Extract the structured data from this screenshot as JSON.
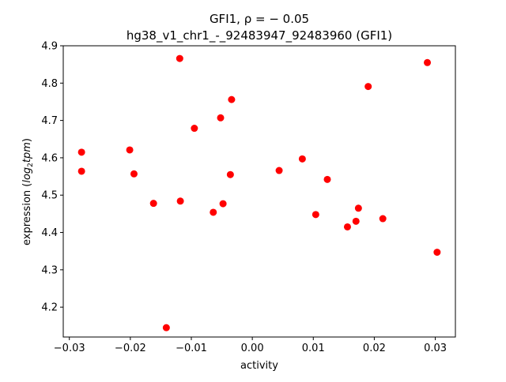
{
  "chart_data": {
    "type": "scatter",
    "title_line1": "GFI1, ρ = − 0.05",
    "title_line2": "hg38_v1_chr1_-_92483947_92483960 (GFI1)",
    "xlabel": "activity",
    "ylabel_prefix": "expression (",
    "ylabel_math": "log",
    "ylabel_sub": "2",
    "ylabel_math2": "tpm",
    "ylabel_suffix": ")",
    "xlim": [
      -0.031,
      0.0333
    ],
    "ylim": [
      4.12,
      4.9
    ],
    "x_ticks": [
      -0.03,
      -0.02,
      -0.01,
      0.0,
      0.01,
      0.02,
      0.03
    ],
    "x_tick_labels": [
      "−0.03",
      "−0.02",
      "−0.01",
      "0.00",
      "0.01",
      "0.02",
      "0.03"
    ],
    "y_ticks": [
      4.2,
      4.3,
      4.4,
      4.5,
      4.6,
      4.7,
      4.8,
      4.9
    ],
    "y_tick_labels": [
      "4.2",
      "4.3",
      "4.4",
      "4.5",
      "4.6",
      "4.7",
      "4.8",
      "4.9"
    ],
    "grid": false,
    "marker_color": "#ff0000",
    "points": [
      {
        "x": -0.028,
        "y": 4.615
      },
      {
        "x": -0.028,
        "y": 4.564
      },
      {
        "x": -0.0201,
        "y": 4.621
      },
      {
        "x": -0.0194,
        "y": 4.557
      },
      {
        "x": -0.0162,
        "y": 4.478
      },
      {
        "x": -0.0141,
        "y": 4.145
      },
      {
        "x": -0.0119,
        "y": 4.866
      },
      {
        "x": -0.0118,
        "y": 4.484
      },
      {
        "x": -0.0095,
        "y": 4.679
      },
      {
        "x": -0.0064,
        "y": 4.454
      },
      {
        "x": -0.0052,
        "y": 4.707
      },
      {
        "x": -0.0048,
        "y": 4.477
      },
      {
        "x": -0.0034,
        "y": 4.756
      },
      {
        "x": -0.0036,
        "y": 4.555
      },
      {
        "x": 0.0044,
        "y": 4.566
      },
      {
        "x": 0.0082,
        "y": 4.597
      },
      {
        "x": 0.0104,
        "y": 4.448
      },
      {
        "x": 0.0123,
        "y": 4.542
      },
      {
        "x": 0.0156,
        "y": 4.415
      },
      {
        "x": 0.017,
        "y": 4.43
      },
      {
        "x": 0.0174,
        "y": 4.465
      },
      {
        "x": 0.019,
        "y": 4.791
      },
      {
        "x": 0.0214,
        "y": 4.437
      },
      {
        "x": 0.0287,
        "y": 4.855
      },
      {
        "x": 0.0303,
        "y": 4.347
      }
    ]
  }
}
